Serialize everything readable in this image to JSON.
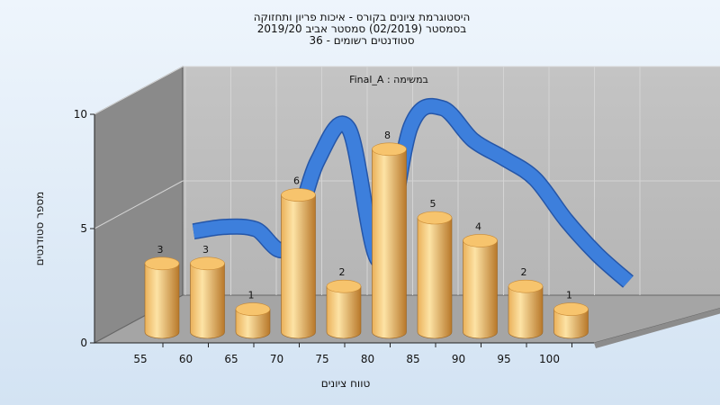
{
  "chart_data": {
    "type": "bar",
    "title_lines": [
      "היסטוגרמת ציונים בקורס - איכות פריון ותחזוקה",
      "בסמסטר  (02/2019)  סמסטר אביב 2019/20",
      "סטודנטים רשומים - 36"
    ],
    "annotation": "במשימה : Final_A",
    "xlabel": "טווח ציונים",
    "ylabel": "מספר סטודנטים",
    "categories": [
      "55",
      "60",
      "65",
      "70",
      "75",
      "80",
      "85",
      "90",
      "95",
      "100"
    ],
    "values": [
      3,
      3,
      1,
      6,
      2,
      8,
      5,
      4,
      2,
      1
    ],
    "yticks": [
      "0",
      "5",
      "10"
    ],
    "ylim": [
      0,
      10
    ],
    "curve": [
      3.3,
      3.5,
      3.4,
      2.6,
      6.4,
      7.8,
      2.0,
      7.9,
      8.7,
      7.3,
      6.5,
      5.6,
      3.8,
      2.3,
      1.1
    ],
    "grid": true,
    "colors": {
      "bar_light": "#fde3a5",
      "bar_mid": "#eab15a",
      "bar_dark": "#b8782a",
      "bar_top": "#f7c46d",
      "curve": "#3d7fdc",
      "curve_dark": "#2556a8",
      "back_wall": "#b5b5b5",
      "side_wall": "#8a8a8a",
      "floor": "#a5a5a5",
      "grid": "#d4d4d4"
    }
  }
}
